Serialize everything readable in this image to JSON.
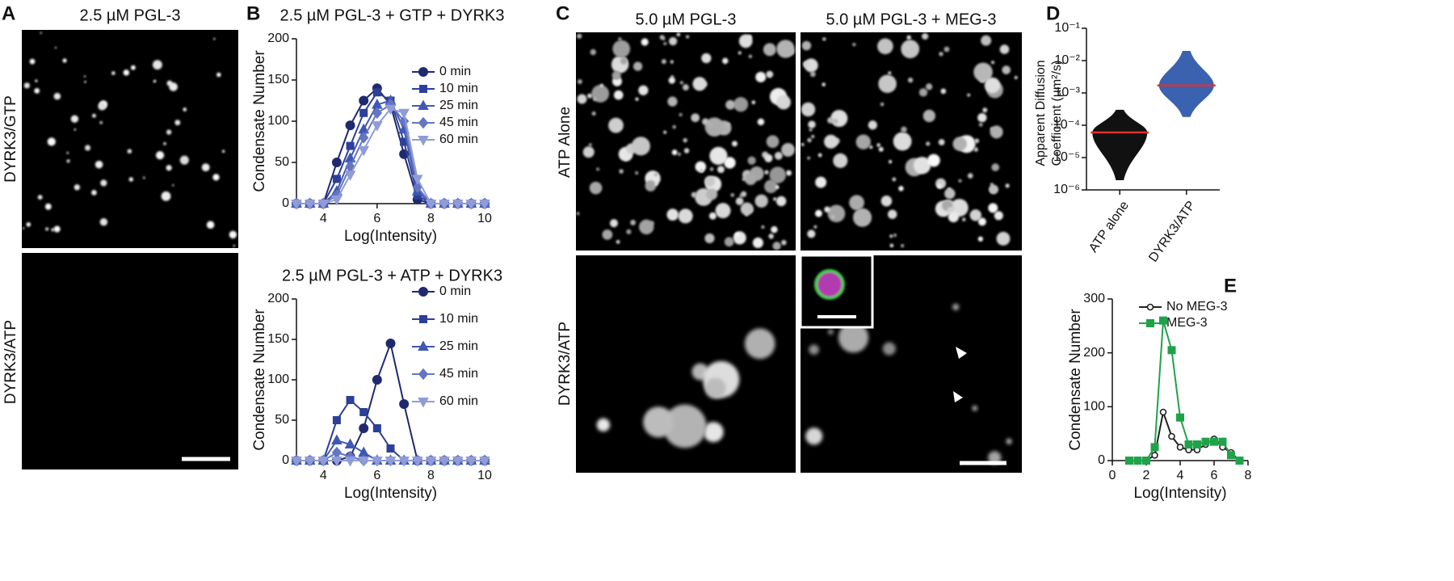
{
  "panels": {
    "A": {
      "label": "A",
      "title": "2.5 µM PGL-3",
      "rows": [
        "DYRK3/GTP",
        "DYRK3/ATP"
      ]
    },
    "C": {
      "label": "C",
      "columns": [
        "5.0 µM PGL-3",
        "5.0 µM PGL-3 + MEG-3"
      ],
      "rows": [
        "ATP Alone",
        "DYRK3/ATP"
      ]
    }
  },
  "chart_data": [
    {
      "type": "line",
      "panel_label": "B",
      "title": "2.5 µM PGL-3 + GTP + DYRK3",
      "xlabel": "Log(Intensity)",
      "ylabel": "Condensate Number",
      "x": [
        3,
        3.5,
        4,
        4.5,
        5,
        5.5,
        6,
        6.5,
        7,
        7.5,
        8,
        8.5,
        9,
        9.5,
        10
      ],
      "xlim": [
        3,
        10
      ],
      "xticks": [
        4,
        6,
        8,
        10
      ],
      "ylim": [
        0,
        200
      ],
      "yticks": [
        0,
        50,
        100,
        150,
        200
      ],
      "legend": "upper right",
      "series": [
        {
          "name": "0 min",
          "color": "#1f2a6e",
          "marker": "circle",
          "values": [
            0,
            0,
            0,
            50,
            95,
            125,
            140,
            120,
            60,
            5,
            0,
            0,
            0,
            0,
            0
          ]
        },
        {
          "name": "10 min",
          "color": "#2c3f99",
          "marker": "square",
          "values": [
            0,
            0,
            0,
            30,
            70,
            110,
            135,
            125,
            75,
            10,
            0,
            0,
            0,
            0,
            0
          ]
        },
        {
          "name": "25 min",
          "color": "#4058b2",
          "marker": "triangle",
          "values": [
            0,
            0,
            0,
            15,
            55,
            90,
            120,
            125,
            90,
            15,
            0,
            0,
            0,
            0,
            0
          ]
        },
        {
          "name": "45 min",
          "color": "#6475c2",
          "marker": "diamond",
          "values": [
            0,
            0,
            0,
            10,
            45,
            80,
            110,
            120,
            100,
            20,
            0,
            0,
            0,
            0,
            0
          ]
        },
        {
          "name": "60 min",
          "color": "#8f9cd8",
          "marker": "triangle-down",
          "values": [
            0,
            0,
            0,
            5,
            35,
            65,
            95,
            115,
            110,
            30,
            0,
            0,
            0,
            0,
            0
          ]
        }
      ]
    },
    {
      "type": "line",
      "title": "2.5 µM PGL-3 + ATP + DYRK3",
      "xlabel": "Log(Intensity)",
      "ylabel": "Condensate Number",
      "x": [
        3,
        3.5,
        4,
        4.5,
        5,
        5.5,
        6,
        6.5,
        7,
        7.5,
        8,
        8.5,
        9,
        9.5,
        10
      ],
      "xlim": [
        3,
        10
      ],
      "xticks": [
        4,
        6,
        8,
        10
      ],
      "ylim": [
        0,
        200
      ],
      "yticks": [
        0,
        50,
        100,
        150,
        200
      ],
      "legend": "upper right",
      "series": [
        {
          "name": "0 min",
          "color": "#1f2a6e",
          "marker": "circle",
          "values": [
            0,
            0,
            0,
            0,
            5,
            40,
            100,
            145,
            70,
            0,
            0,
            0,
            0,
            0,
            0
          ]
        },
        {
          "name": "10 min",
          "color": "#2c3f99",
          "marker": "square",
          "values": [
            0,
            0,
            0,
            50,
            75,
            60,
            40,
            15,
            0,
            0,
            0,
            0,
            0,
            0,
            0
          ]
        },
        {
          "name": "25 min",
          "color": "#4058b2",
          "marker": "triangle",
          "values": [
            0,
            0,
            0,
            25,
            20,
            10,
            0,
            0,
            0,
            0,
            0,
            0,
            0,
            0,
            0
          ]
        },
        {
          "name": "45 min",
          "color": "#6475c2",
          "marker": "diamond",
          "values": [
            0,
            0,
            0,
            10,
            5,
            0,
            0,
            0,
            0,
            0,
            0,
            0,
            0,
            0,
            0
          ]
        },
        {
          "name": "60 min",
          "color": "#8f9cd8",
          "marker": "triangle-down",
          "values": [
            0,
            0,
            0,
            0,
            0,
            0,
            0,
            0,
            0,
            0,
            0,
            0,
            0,
            0,
            0
          ]
        }
      ]
    },
    {
      "type": "swarm",
      "panel_label": "D",
      "ylabel": [
        "Apparent Diffusion",
        "Coefficient (µm²/s)"
      ],
      "categories": [
        "ATP alone",
        "DYRK3/ATP"
      ],
      "colors": [
        "#111111",
        "#3a62b0"
      ],
      "median_color": "#e0302a",
      "yscale": "log",
      "ylim": [
        1e-06,
        0.1
      ],
      "yticks": [
        {
          "value": 1e-06,
          "label": "10⁻⁶"
        },
        {
          "value": 1e-05,
          "label": "10⁻⁵"
        },
        {
          "value": 0.0001,
          "label": "10⁻⁴"
        },
        {
          "value": 0.001,
          "label": "10⁻³"
        },
        {
          "value": 0.01,
          "label": "10⁻²"
        },
        {
          "value": 0.1,
          "label": "10⁻¹"
        }
      ],
      "medians": [
        6e-05,
        0.0017
      ],
      "ranges": [
        [
          2e-06,
          0.0003
        ],
        [
          0.00018,
          0.02
        ]
      ]
    },
    {
      "type": "line",
      "panel_label": "E",
      "xlabel": "Log(Intensity)",
      "ylabel": "Condensate Number",
      "x": [
        1,
        1.5,
        2,
        2.5,
        3,
        3.5,
        4,
        4.5,
        5,
        5.5,
        6,
        6.5,
        7,
        7.5
      ],
      "xlim": [
        0,
        8
      ],
      "xticks": [
        0,
        2,
        4,
        6,
        8
      ],
      "ylim": [
        0,
        300
      ],
      "yticks": [
        0,
        100,
        200,
        300
      ],
      "legend": "upper right",
      "series": [
        {
          "name": "No MEG-3",
          "color": "#222222",
          "marker": "circle-open",
          "values": [
            0,
            0,
            0,
            10,
            90,
            45,
            25,
            20,
            20,
            30,
            40,
            25,
            15,
            0
          ]
        },
        {
          "name": "MEG-3",
          "color": "#1fa34a",
          "marker": "square",
          "values": [
            0,
            0,
            0,
            25,
            260,
            205,
            80,
            30,
            30,
            35,
            35,
            35,
            10,
            0
          ]
        }
      ]
    }
  ]
}
